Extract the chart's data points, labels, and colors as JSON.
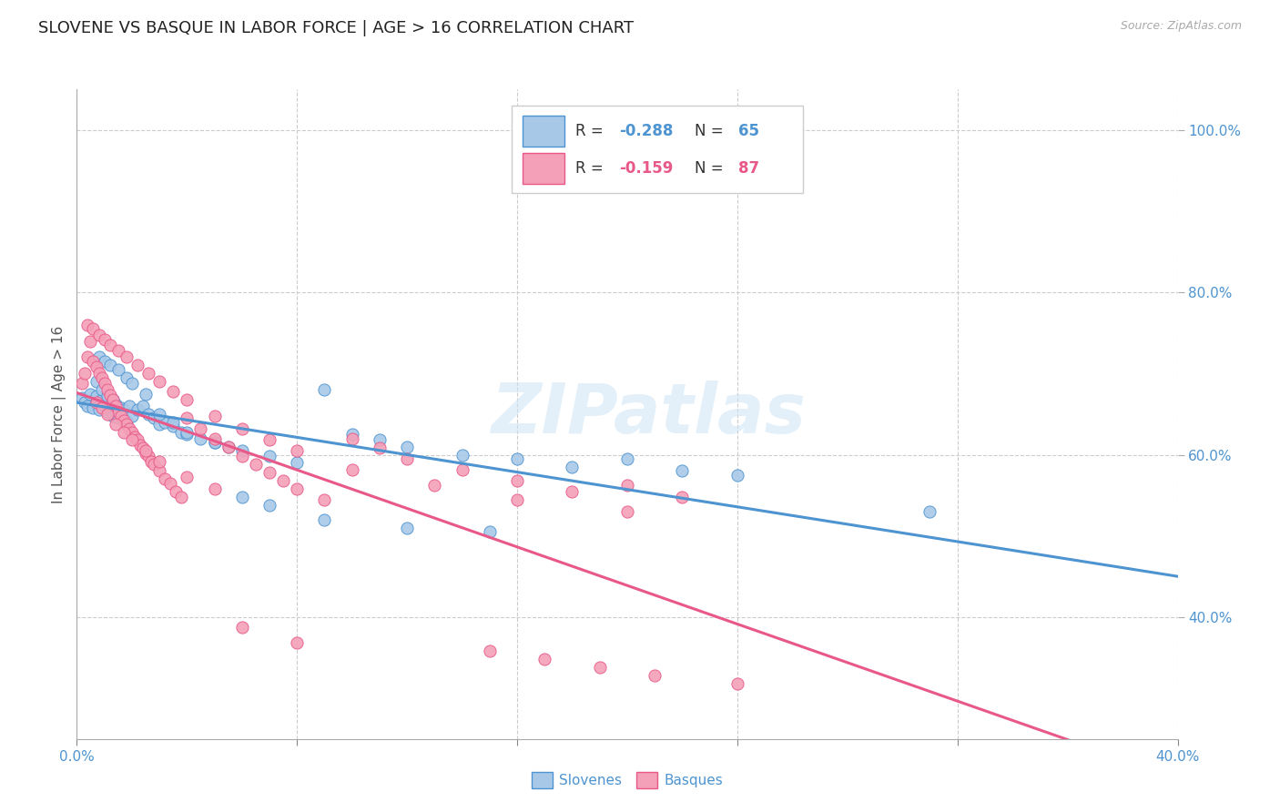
{
  "title": "SLOVENE VS BASQUE IN LABOR FORCE | AGE > 16 CORRELATION CHART",
  "source": "Source: ZipAtlas.com",
  "ylabel": "In Labor Force | Age > 16",
  "xlim": [
    0.0,
    0.4
  ],
  "ylim": [
    0.25,
    1.05
  ],
  "xtick_values": [
    0.0,
    0.08,
    0.16,
    0.24,
    0.32,
    0.4
  ],
  "xtick_labels": [
    "0.0%",
    "",
    "",
    "",
    "",
    "40.0%"
  ],
  "right_ytick_values": [
    1.0,
    0.8,
    0.6,
    0.4
  ],
  "right_ytick_labels": [
    "100.0%",
    "80.0%",
    "60.0%",
    "40.0%"
  ],
  "slovene_color": "#a8c8e8",
  "basque_color": "#f4a0b8",
  "trend_slovene_color": "#4d94d0",
  "trend_basque_color": "#e85888",
  "watermark": "ZIPatlas",
  "background_color": "#ffffff",
  "grid_color": "#cccccc",
  "slovene_x": [
    0.002,
    0.003,
    0.004,
    0.005,
    0.006,
    0.007,
    0.008,
    0.009,
    0.01,
    0.011,
    0.012,
    0.013,
    0.014,
    0.015,
    0.016,
    0.017,
    0.018,
    0.019,
    0.02,
    0.022,
    0.024,
    0.026,
    0.028,
    0.03,
    0.032,
    0.035,
    0.038,
    0.04,
    0.045,
    0.05,
    0.055,
    0.06,
    0.07,
    0.08,
    0.09,
    0.1,
    0.11,
    0.12,
    0.14,
    0.16,
    0.18,
    0.2,
    0.22,
    0.24,
    0.008,
    0.01,
    0.012,
    0.015,
    0.018,
    0.02,
    0.025,
    0.03,
    0.035,
    0.04,
    0.05,
    0.06,
    0.07,
    0.09,
    0.12,
    0.15,
    0.007,
    0.009,
    0.011,
    0.013,
    0.31
  ],
  "slovene_y": [
    0.67,
    0.665,
    0.66,
    0.675,
    0.658,
    0.672,
    0.655,
    0.668,
    0.66,
    0.653,
    0.665,
    0.648,
    0.662,
    0.645,
    0.658,
    0.655,
    0.642,
    0.66,
    0.648,
    0.655,
    0.66,
    0.65,
    0.645,
    0.638,
    0.64,
    0.635,
    0.628,
    0.625,
    0.62,
    0.615,
    0.61,
    0.605,
    0.598,
    0.59,
    0.68,
    0.625,
    0.618,
    0.61,
    0.6,
    0.595,
    0.585,
    0.595,
    0.58,
    0.575,
    0.72,
    0.715,
    0.71,
    0.705,
    0.695,
    0.688,
    0.675,
    0.65,
    0.64,
    0.628,
    0.615,
    0.548,
    0.538,
    0.52,
    0.51,
    0.505,
    0.69,
    0.68,
    0.672,
    0.668,
    0.53
  ],
  "basque_x": [
    0.002,
    0.003,
    0.004,
    0.005,
    0.006,
    0.007,
    0.008,
    0.009,
    0.01,
    0.011,
    0.012,
    0.013,
    0.014,
    0.015,
    0.016,
    0.017,
    0.018,
    0.019,
    0.02,
    0.021,
    0.022,
    0.023,
    0.024,
    0.025,
    0.026,
    0.027,
    0.028,
    0.03,
    0.032,
    0.034,
    0.036,
    0.038,
    0.04,
    0.045,
    0.05,
    0.055,
    0.06,
    0.065,
    0.07,
    0.075,
    0.08,
    0.09,
    0.1,
    0.11,
    0.12,
    0.14,
    0.16,
    0.18,
    0.2,
    0.22,
    0.004,
    0.006,
    0.008,
    0.01,
    0.012,
    0.015,
    0.018,
    0.022,
    0.026,
    0.03,
    0.035,
    0.04,
    0.05,
    0.06,
    0.07,
    0.08,
    0.1,
    0.13,
    0.16,
    0.2,
    0.007,
    0.009,
    0.011,
    0.014,
    0.017,
    0.02,
    0.025,
    0.03,
    0.04,
    0.05,
    0.06,
    0.08,
    0.15,
    0.17,
    0.19,
    0.21,
    0.24
  ],
  "basque_y": [
    0.688,
    0.7,
    0.72,
    0.74,
    0.715,
    0.708,
    0.7,
    0.695,
    0.688,
    0.68,
    0.673,
    0.668,
    0.66,
    0.652,
    0.648,
    0.642,
    0.638,
    0.632,
    0.628,
    0.622,
    0.618,
    0.612,
    0.608,
    0.602,
    0.598,
    0.592,
    0.588,
    0.58,
    0.57,
    0.565,
    0.555,
    0.548,
    0.645,
    0.632,
    0.62,
    0.61,
    0.598,
    0.588,
    0.578,
    0.568,
    0.558,
    0.545,
    0.62,
    0.608,
    0.595,
    0.582,
    0.568,
    0.555,
    0.562,
    0.548,
    0.76,
    0.755,
    0.748,
    0.742,
    0.735,
    0.728,
    0.72,
    0.71,
    0.7,
    0.69,
    0.678,
    0.668,
    0.648,
    0.632,
    0.618,
    0.605,
    0.582,
    0.562,
    0.545,
    0.53,
    0.665,
    0.658,
    0.65,
    0.638,
    0.628,
    0.618,
    0.605,
    0.592,
    0.572,
    0.558,
    0.388,
    0.368,
    0.358,
    0.348,
    0.338,
    0.328,
    0.318
  ]
}
